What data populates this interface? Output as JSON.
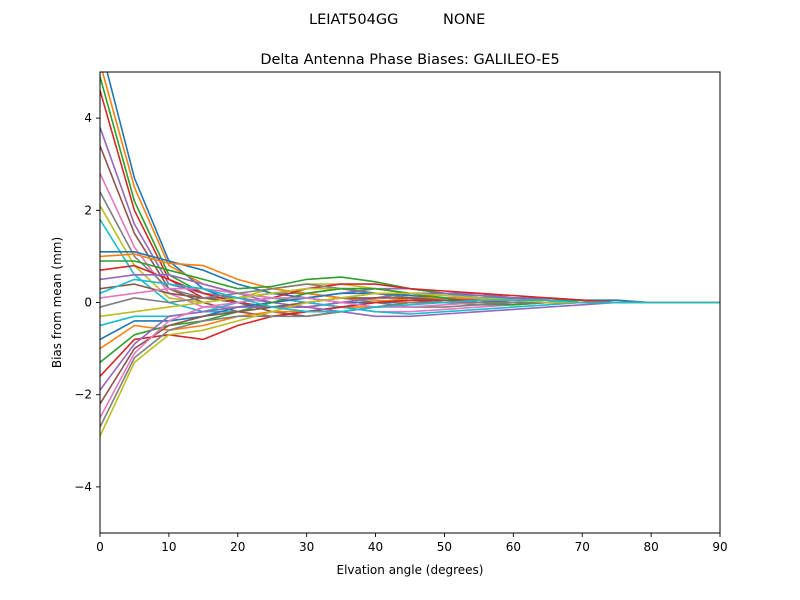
{
  "figure": {
    "suptitle_left": "LEIAT504GG",
    "suptitle_right": "NONE"
  },
  "chart_data": {
    "type": "line",
    "title": "Delta Antenna Phase Biases: GALILEO-E5",
    "xlabel": "Elvation angle (degrees)",
    "ylabel": "Bias from mean (mm)",
    "xlim": [
      0,
      90
    ],
    "ylim": [
      -5,
      5
    ],
    "xticks": [
      0,
      10,
      20,
      30,
      40,
      50,
      60,
      70,
      80,
      90
    ],
    "yticks": [
      -4,
      -2,
      0,
      2,
      4
    ],
    "xtick_labels": [
      "0",
      "10",
      "20",
      "30",
      "40",
      "50",
      "60",
      "70",
      "80",
      "90"
    ],
    "ytick_labels": [
      "−4",
      "−2",
      "0",
      "2",
      "4"
    ],
    "grid": false,
    "legend": "none",
    "x": [
      0,
      5,
      10,
      15,
      20,
      25,
      30,
      35,
      40,
      45,
      50,
      55,
      60,
      65,
      70,
      75,
      80,
      85,
      90
    ],
    "colors": [
      "#1f77b4",
      "#ff7f0e",
      "#2ca02c",
      "#d62728",
      "#9467bd",
      "#8c564b",
      "#e377c2",
      "#7f7f7f",
      "#bcbd22",
      "#17becf"
    ],
    "series": [
      {
        "values": [
          5.6,
          2.7,
          0.9,
          0.3,
          0.0,
          -0.1,
          -0.2,
          -0.1,
          0.0,
          0.1,
          0.1,
          0.1,
          0.1,
          0.1,
          0.05,
          0.05,
          0.0,
          0.0,
          0.0
        ]
      },
      {
        "values": [
          5.2,
          2.5,
          0.8,
          0.4,
          0.2,
          0.1,
          0.0,
          -0.1,
          -0.1,
          0.0,
          0.0,
          0.05,
          0.05,
          0.05,
          0.0,
          0.0,
          0.0,
          0.0,
          0.0
        ]
      },
      {
        "values": [
          4.9,
          2.2,
          0.6,
          0.2,
          0.1,
          0.2,
          0.3,
          0.3,
          0.2,
          0.1,
          0.0,
          0.0,
          0.0,
          0.0,
          0.0,
          0.0,
          0.0,
          0.0,
          0.0
        ]
      },
      {
        "values": [
          4.6,
          2.0,
          0.5,
          0.1,
          0.0,
          -0.1,
          -0.1,
          0.0,
          0.1,
          0.2,
          0.2,
          0.1,
          0.1,
          0.05,
          0.05,
          0.0,
          0.0,
          0.0,
          0.0
        ]
      },
      {
        "values": [
          3.8,
          1.7,
          0.4,
          0.2,
          0.1,
          0.0,
          0.1,
          0.2,
          0.3,
          0.3,
          0.2,
          0.2,
          0.1,
          0.1,
          0.05,
          0.0,
          0.0,
          0.0,
          0.0
        ]
      },
      {
        "values": [
          3.4,
          1.5,
          0.3,
          0.0,
          -0.2,
          -0.3,
          -0.2,
          -0.1,
          0.0,
          0.1,
          0.1,
          0.1,
          0.05,
          0.05,
          0.0,
          0.0,
          0.0,
          0.0,
          0.0
        ]
      },
      {
        "values": [
          2.8,
          1.2,
          0.2,
          -0.1,
          -0.1,
          0.0,
          0.2,
          0.3,
          0.3,
          0.2,
          0.1,
          0.1,
          0.05,
          0.05,
          0.0,
          0.0,
          0.0,
          0.0,
          0.0
        ]
      },
      {
        "values": [
          2.4,
          1.0,
          0.3,
          0.1,
          0.1,
          0.2,
          0.2,
          0.1,
          0.0,
          -0.1,
          -0.1,
          -0.05,
          0.0,
          0.0,
          0.0,
          0.0,
          0.0,
          0.0,
          0.0
        ]
      },
      {
        "values": [
          2.1,
          0.8,
          0.1,
          0.0,
          0.1,
          0.3,
          0.4,
          0.4,
          0.3,
          0.2,
          0.1,
          0.05,
          0.0,
          0.0,
          0.0,
          0.0,
          0.0,
          0.0,
          0.0
        ]
      },
      {
        "values": [
          1.8,
          0.6,
          0.0,
          -0.2,
          -0.2,
          -0.1,
          0.0,
          0.1,
          0.2,
          0.2,
          0.2,
          0.1,
          0.1,
          0.05,
          0.0,
          0.0,
          0.0,
          0.0,
          0.0
        ]
      },
      {
        "values": [
          1.1,
          1.1,
          0.9,
          0.7,
          0.4,
          0.2,
          0.1,
          0.0,
          0.0,
          0.0,
          0.0,
          0.0,
          0.0,
          0.0,
          0.0,
          0.0,
          0.0,
          0.0,
          0.0
        ]
      },
      {
        "values": [
          1.0,
          1.05,
          0.85,
          0.8,
          0.5,
          0.3,
          0.2,
          0.1,
          0.05,
          0.0,
          0.0,
          0.0,
          0.0,
          0.0,
          0.0,
          0.0,
          0.0,
          0.0,
          0.0
        ]
      },
      {
        "values": [
          0.9,
          0.9,
          0.7,
          0.5,
          0.3,
          0.35,
          0.5,
          0.55,
          0.45,
          0.3,
          0.2,
          0.15,
          0.1,
          0.05,
          0.05,
          0.0,
          0.0,
          0.0,
          0.0
        ]
      },
      {
        "values": [
          0.7,
          0.8,
          0.5,
          0.2,
          0.0,
          0.1,
          0.3,
          0.4,
          0.4,
          0.3,
          0.25,
          0.2,
          0.15,
          0.1,
          0.05,
          0.0,
          0.0,
          0.0,
          0.0
        ]
      },
      {
        "values": [
          0.5,
          0.6,
          0.6,
          0.4,
          0.2,
          0.0,
          -0.1,
          0.0,
          0.1,
          0.2,
          0.2,
          0.15,
          0.1,
          0.05,
          0.0,
          0.0,
          0.0,
          0.0,
          0.0
        ]
      },
      {
        "values": [
          0.3,
          0.4,
          0.2,
          0.1,
          0.0,
          -0.2,
          -0.3,
          -0.2,
          -0.1,
          0.0,
          0.05,
          0.05,
          0.05,
          0.0,
          0.0,
          0.0,
          0.0,
          0.0,
          0.0
        ]
      },
      {
        "values": [
          0.1,
          0.2,
          0.3,
          0.3,
          0.2,
          0.1,
          0.0,
          -0.1,
          -0.2,
          -0.2,
          -0.15,
          -0.1,
          -0.05,
          0.0,
          0.0,
          0.0,
          0.0,
          0.0,
          0.0
        ]
      },
      {
        "values": [
          -0.1,
          0.1,
          0.0,
          0.1,
          0.2,
          0.3,
          0.4,
          0.3,
          0.2,
          0.1,
          0.0,
          -0.05,
          -0.05,
          0.0,
          0.0,
          0.0,
          0.0,
          0.0,
          0.0
        ]
      },
      {
        "values": [
          -0.3,
          -0.2,
          -0.1,
          0.0,
          0.1,
          0.2,
          0.3,
          0.3,
          0.3,
          0.2,
          0.1,
          0.05,
          0.0,
          0.0,
          0.0,
          0.0,
          0.0,
          0.0,
          0.0
        ]
      },
      {
        "values": [
          -0.5,
          -0.3,
          -0.3,
          -0.2,
          0.0,
          0.1,
          0.0,
          -0.1,
          -0.2,
          -0.25,
          -0.2,
          -0.15,
          -0.1,
          -0.05,
          0.0,
          0.0,
          0.0,
          0.0,
          0.0
        ]
      },
      {
        "values": [
          -0.8,
          -0.4,
          -0.4,
          -0.3,
          -0.1,
          0.0,
          0.1,
          0.2,
          0.2,
          0.15,
          0.1,
          0.05,
          0.0,
          0.0,
          0.0,
          0.0,
          0.0,
          0.0,
          0.0
        ]
      },
      {
        "values": [
          -1.0,
          -0.5,
          -0.6,
          -0.5,
          -0.3,
          -0.2,
          -0.2,
          -0.1,
          0.0,
          0.1,
          0.1,
          0.05,
          0.0,
          0.0,
          0.0,
          0.0,
          0.0,
          0.0,
          0.0
        ]
      },
      {
        "values": [
          -1.3,
          -0.7,
          -0.5,
          -0.4,
          -0.2,
          0.0,
          0.2,
          0.3,
          0.3,
          0.2,
          0.1,
          0.0,
          -0.05,
          0.0,
          0.0,
          0.0,
          0.0,
          0.0,
          0.0
        ]
      },
      {
        "values": [
          -1.6,
          -0.8,
          -0.7,
          -0.8,
          -0.5,
          -0.3,
          -0.2,
          -0.1,
          0.0,
          0.05,
          0.05,
          0.05,
          0.0,
          0.0,
          0.0,
          0.0,
          0.0,
          0.0,
          0.0
        ]
      },
      {
        "values": [
          -1.9,
          -0.9,
          -0.3,
          -0.2,
          -0.1,
          -0.1,
          -0.1,
          -0.2,
          -0.3,
          -0.3,
          -0.25,
          -0.2,
          -0.15,
          -0.1,
          -0.05,
          0.0,
          0.0,
          0.0,
          0.0
        ]
      },
      {
        "values": [
          -2.2,
          -1.0,
          -0.5,
          -0.3,
          -0.2,
          -0.1,
          0.0,
          0.1,
          0.1,
          0.1,
          0.05,
          0.0,
          0.0,
          0.0,
          0.0,
          0.0,
          0.0,
          0.0,
          0.0
        ]
      },
      {
        "values": [
          -2.5,
          -1.1,
          -0.4,
          -0.1,
          0.0,
          0.1,
          0.1,
          0.0,
          -0.1,
          -0.1,
          -0.05,
          0.0,
          0.0,
          0.0,
          0.0,
          0.0,
          0.0,
          0.0,
          0.0
        ]
      },
      {
        "values": [
          -2.7,
          -1.2,
          -0.6,
          -0.4,
          -0.3,
          -0.3,
          -0.3,
          -0.2,
          -0.1,
          0.0,
          0.0,
          0.0,
          0.0,
          0.0,
          0.0,
          0.0,
          0.0,
          0.0,
          0.0
        ]
      },
      {
        "values": [
          -2.9,
          -1.3,
          -0.7,
          -0.6,
          -0.4,
          -0.2,
          0.0,
          0.1,
          0.2,
          0.2,
          0.15,
          0.1,
          0.05,
          0.0,
          0.0,
          0.0,
          0.0,
          0.0,
          0.0
        ]
      },
      {
        "values": [
          0.2,
          0.5,
          0.4,
          0.3,
          0.1,
          -0.1,
          -0.2,
          -0.2,
          -0.1,
          -0.05,
          0.0,
          0.05,
          0.05,
          0.05,
          0.0,
          0.0,
          0.0,
          0.0,
          0.0
        ]
      }
    ]
  }
}
